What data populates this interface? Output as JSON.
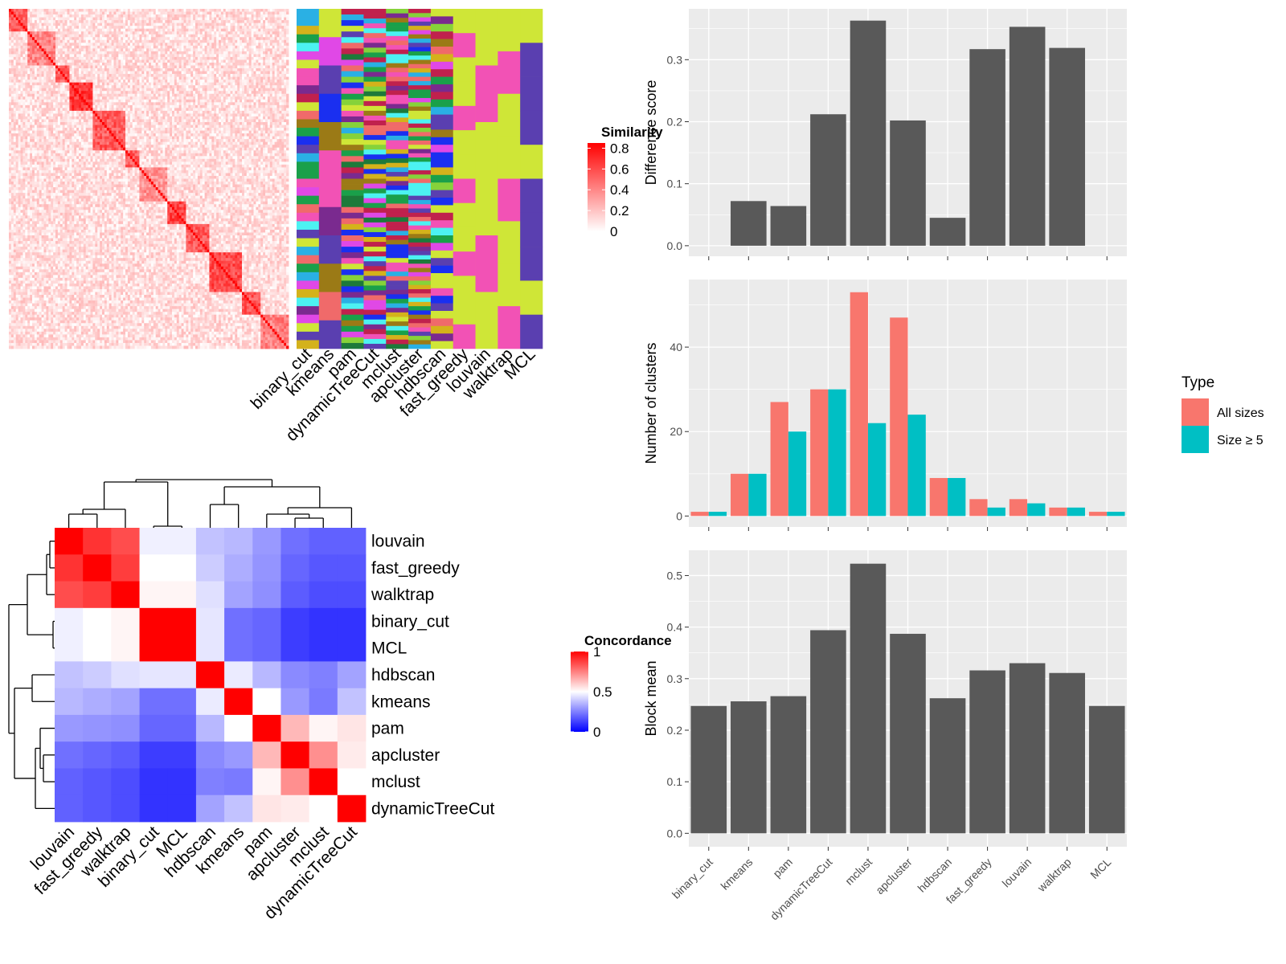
{
  "colors": {
    "panel_bg": "#ebebeb",
    "grid": "#ffffff",
    "bar": "#595959",
    "all_sizes": "#f8766d",
    "size_ge5": "#00bfc4",
    "high": "#ff0000",
    "mid": "#ffffff",
    "low": "#0000ff"
  },
  "methods_order": [
    "binary_cut",
    "kmeans",
    "pam",
    "dynamicTreeCut",
    "mclust",
    "apcluster",
    "hdbscan",
    "fast_greedy",
    "louvain",
    "walktrap",
    "MCL"
  ],
  "similarity_heatmap": {
    "legend_title": "Similarity",
    "legend_ticks": [
      "0.8",
      "0.6",
      "0.4",
      "0.2",
      "0"
    ],
    "legend_values": [
      0.8,
      0.6,
      0.4,
      0.2,
      0
    ],
    "n_terms": 120,
    "block_sizes": [
      8,
      12,
      6,
      10,
      14,
      6,
      12,
      8,
      10,
      14,
      8,
      12
    ]
  },
  "cluster_annotation": {
    "columns": [
      "binary_cut",
      "kmeans",
      "pam",
      "dynamicTreeCut",
      "mclust",
      "apcluster",
      "hdbscan",
      "fast_greedy",
      "louvain",
      "walktrap",
      "MCL"
    ],
    "palette": [
      "#cfe637",
      "#f252b5",
      "#2ab0e4",
      "#1aa04a",
      "#d4b21b",
      "#5a3fb0",
      "#c0214d",
      "#4cf2f2",
      "#e048e6",
      "#1a2ff0",
      "#9b7a16",
      "#86d23a",
      "#f06a6a",
      "#1d7a3a",
      "#7a2a8f"
    ]
  },
  "concordance_heatmap": {
    "legend_title": "Concordance",
    "legend_ticks": [
      "1",
      "0.5",
      "0"
    ],
    "legend_values": [
      1,
      0.5,
      0
    ],
    "labels": [
      "louvain",
      "fast_greedy",
      "walktrap",
      "binary_cut",
      "MCL",
      "hdbscan",
      "kmeans",
      "pam",
      "apcluster",
      "mclust",
      "dynamicTreeCut"
    ],
    "matrix": [
      [
        1.0,
        0.9,
        0.85,
        0.47,
        0.47,
        0.38,
        0.36,
        0.3,
        0.22,
        0.19,
        0.19
      ],
      [
        0.9,
        1.0,
        0.88,
        0.5,
        0.5,
        0.4,
        0.34,
        0.29,
        0.2,
        0.17,
        0.17
      ],
      [
        0.85,
        0.88,
        1.0,
        0.52,
        0.52,
        0.44,
        0.32,
        0.28,
        0.18,
        0.15,
        0.15
      ],
      [
        0.47,
        0.5,
        0.52,
        1.0,
        1.0,
        0.45,
        0.22,
        0.2,
        0.12,
        0.1,
        0.1
      ],
      [
        0.47,
        0.5,
        0.52,
        1.0,
        1.0,
        0.45,
        0.22,
        0.2,
        0.12,
        0.1,
        0.1
      ],
      [
        0.38,
        0.4,
        0.44,
        0.45,
        0.45,
        1.0,
        0.46,
        0.36,
        0.27,
        0.25,
        0.32
      ],
      [
        0.36,
        0.34,
        0.32,
        0.22,
        0.22,
        0.46,
        1.0,
        0.5,
        0.3,
        0.24,
        0.38
      ],
      [
        0.3,
        0.29,
        0.28,
        0.2,
        0.2,
        0.36,
        0.5,
        1.0,
        0.64,
        0.52,
        0.55
      ],
      [
        0.22,
        0.2,
        0.18,
        0.12,
        0.12,
        0.27,
        0.3,
        0.64,
        1.0,
        0.72,
        0.54
      ],
      [
        0.19,
        0.17,
        0.15,
        0.1,
        0.1,
        0.25,
        0.24,
        0.52,
        0.72,
        1.0,
        0.5
      ],
      [
        0.19,
        0.17,
        0.15,
        0.1,
        0.1,
        0.32,
        0.38,
        0.55,
        0.54,
        0.5,
        1.0
      ]
    ]
  },
  "chart_data": [
    {
      "type": "bar",
      "categories": [
        "binary_cut",
        "kmeans",
        "pam",
        "dynamicTreeCut",
        "mclust",
        "apcluster",
        "hdbscan",
        "fast_greedy",
        "louvain",
        "walktrap",
        "MCL"
      ],
      "values": [
        0,
        0.072,
        0.064,
        0.212,
        0.363,
        0.202,
        0.045,
        0.317,
        0.353,
        0.319,
        0
      ],
      "title": "",
      "xlabel": "",
      "ylabel": "Difference score",
      "ylim": [
        -0.017,
        0.382
      ],
      "yticks": [
        "0.0",
        "0.1",
        "0.2",
        "0.3"
      ],
      "ytick_values": [
        0,
        0.1,
        0.2,
        0.3
      ],
      "grid": true
    },
    {
      "type": "bar",
      "categories": [
        "binary_cut",
        "kmeans",
        "pam",
        "dynamicTreeCut",
        "mclust",
        "apcluster",
        "hdbscan",
        "fast_greedy",
        "louvain",
        "walktrap",
        "MCL"
      ],
      "series": [
        {
          "name": "All sizes",
          "values": [
            1,
            10,
            27,
            30,
            53,
            47,
            9,
            4,
            4,
            2,
            1
          ]
        },
        {
          "name": "Size ≥ 5",
          "values": [
            1,
            10,
            20,
            30,
            22,
            24,
            9,
            2,
            3,
            2,
            1
          ]
        }
      ],
      "title": "",
      "xlabel": "",
      "ylabel": "Number of clusters",
      "ylim": [
        -2.6,
        56.0
      ],
      "yticks": [
        "0",
        "20",
        "40"
      ],
      "ytick_values": [
        0,
        20,
        40
      ],
      "legend_title": "Type",
      "legend_position": "right",
      "grid": true
    },
    {
      "type": "bar",
      "categories": [
        "binary_cut",
        "kmeans",
        "pam",
        "dynamicTreeCut",
        "mclust",
        "apcluster",
        "hdbscan",
        "fast_greedy",
        "louvain",
        "walktrap",
        "MCL"
      ],
      "values": [
        0.247,
        0.256,
        0.266,
        0.394,
        0.523,
        0.387,
        0.262,
        0.316,
        0.33,
        0.311,
        0.247
      ],
      "title": "",
      "xlabel": "",
      "ylabel": "Block mean",
      "ylim": [
        -0.026,
        0.549
      ],
      "yticks": [
        "0.0",
        "0.1",
        "0.2",
        "0.3",
        "0.4",
        "0.5"
      ],
      "ytick_values": [
        0,
        0.1,
        0.2,
        0.3,
        0.4,
        0.5
      ],
      "grid": true
    }
  ]
}
